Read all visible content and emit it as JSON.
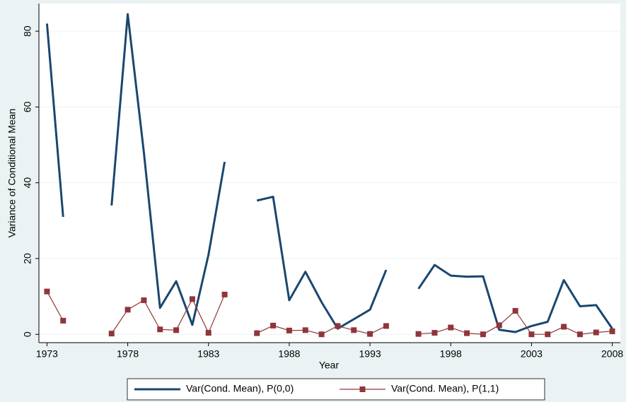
{
  "chart_data": {
    "type": "line",
    "x_label": "Year",
    "y_label": "Variance of Conditional Mean",
    "x": [
      1973,
      1974,
      1975,
      1976,
      1977,
      1978,
      1979,
      1980,
      1981,
      1982,
      1983,
      1984,
      1985,
      1986,
      1987,
      1988,
      1989,
      1990,
      1991,
      1992,
      1993,
      1994,
      1995,
      1996,
      1997,
      1998,
      1999,
      2000,
      2001,
      2002,
      2003,
      2004,
      2005,
      2006,
      2007,
      2008
    ],
    "series": [
      {
        "name": "Var(Cond. Mean), P(0,0)",
        "color": "#1a476f",
        "marker": false,
        "values": [
          82,
          31,
          null,
          null,
          34,
          84.5,
          48,
          7,
          14,
          2.5,
          21,
          45.5,
          null,
          35.3,
          36.3,
          9,
          16.5,
          8.5,
          1.5,
          4,
          6.5,
          17,
          null,
          12,
          18.3,
          15.5,
          15.2,
          15.3,
          1.2,
          0.6,
          2.2,
          3.3,
          14.3,
          7.4,
          7.7,
          1.5
        ]
      },
      {
        "name": "Var(Cond. Mean), P(1,1)",
        "color": "#90353b",
        "marker": true,
        "values": [
          11.3,
          3.6,
          null,
          null,
          0.2,
          6.5,
          9,
          1.3,
          1.1,
          9.3,
          0.4,
          10.5,
          null,
          0.3,
          2.3,
          1,
          1.1,
          0,
          2.2,
          1.1,
          0.1,
          2.2,
          null,
          0.1,
          0.4,
          1.8,
          0.3,
          0,
          2.4,
          6.2,
          0,
          0,
          2,
          0,
          0.5,
          0.8
        ]
      }
    ],
    "xlim": [
      1972.5,
      2008.5
    ],
    "xticks": [
      1973,
      1978,
      1983,
      1988,
      1993,
      1998,
      2003,
      2008
    ],
    "ylim": [
      -2.2,
      87.3
    ],
    "yticks": [
      0,
      20,
      40,
      60,
      80
    ],
    "grid": true,
    "legend": "bottom"
  }
}
